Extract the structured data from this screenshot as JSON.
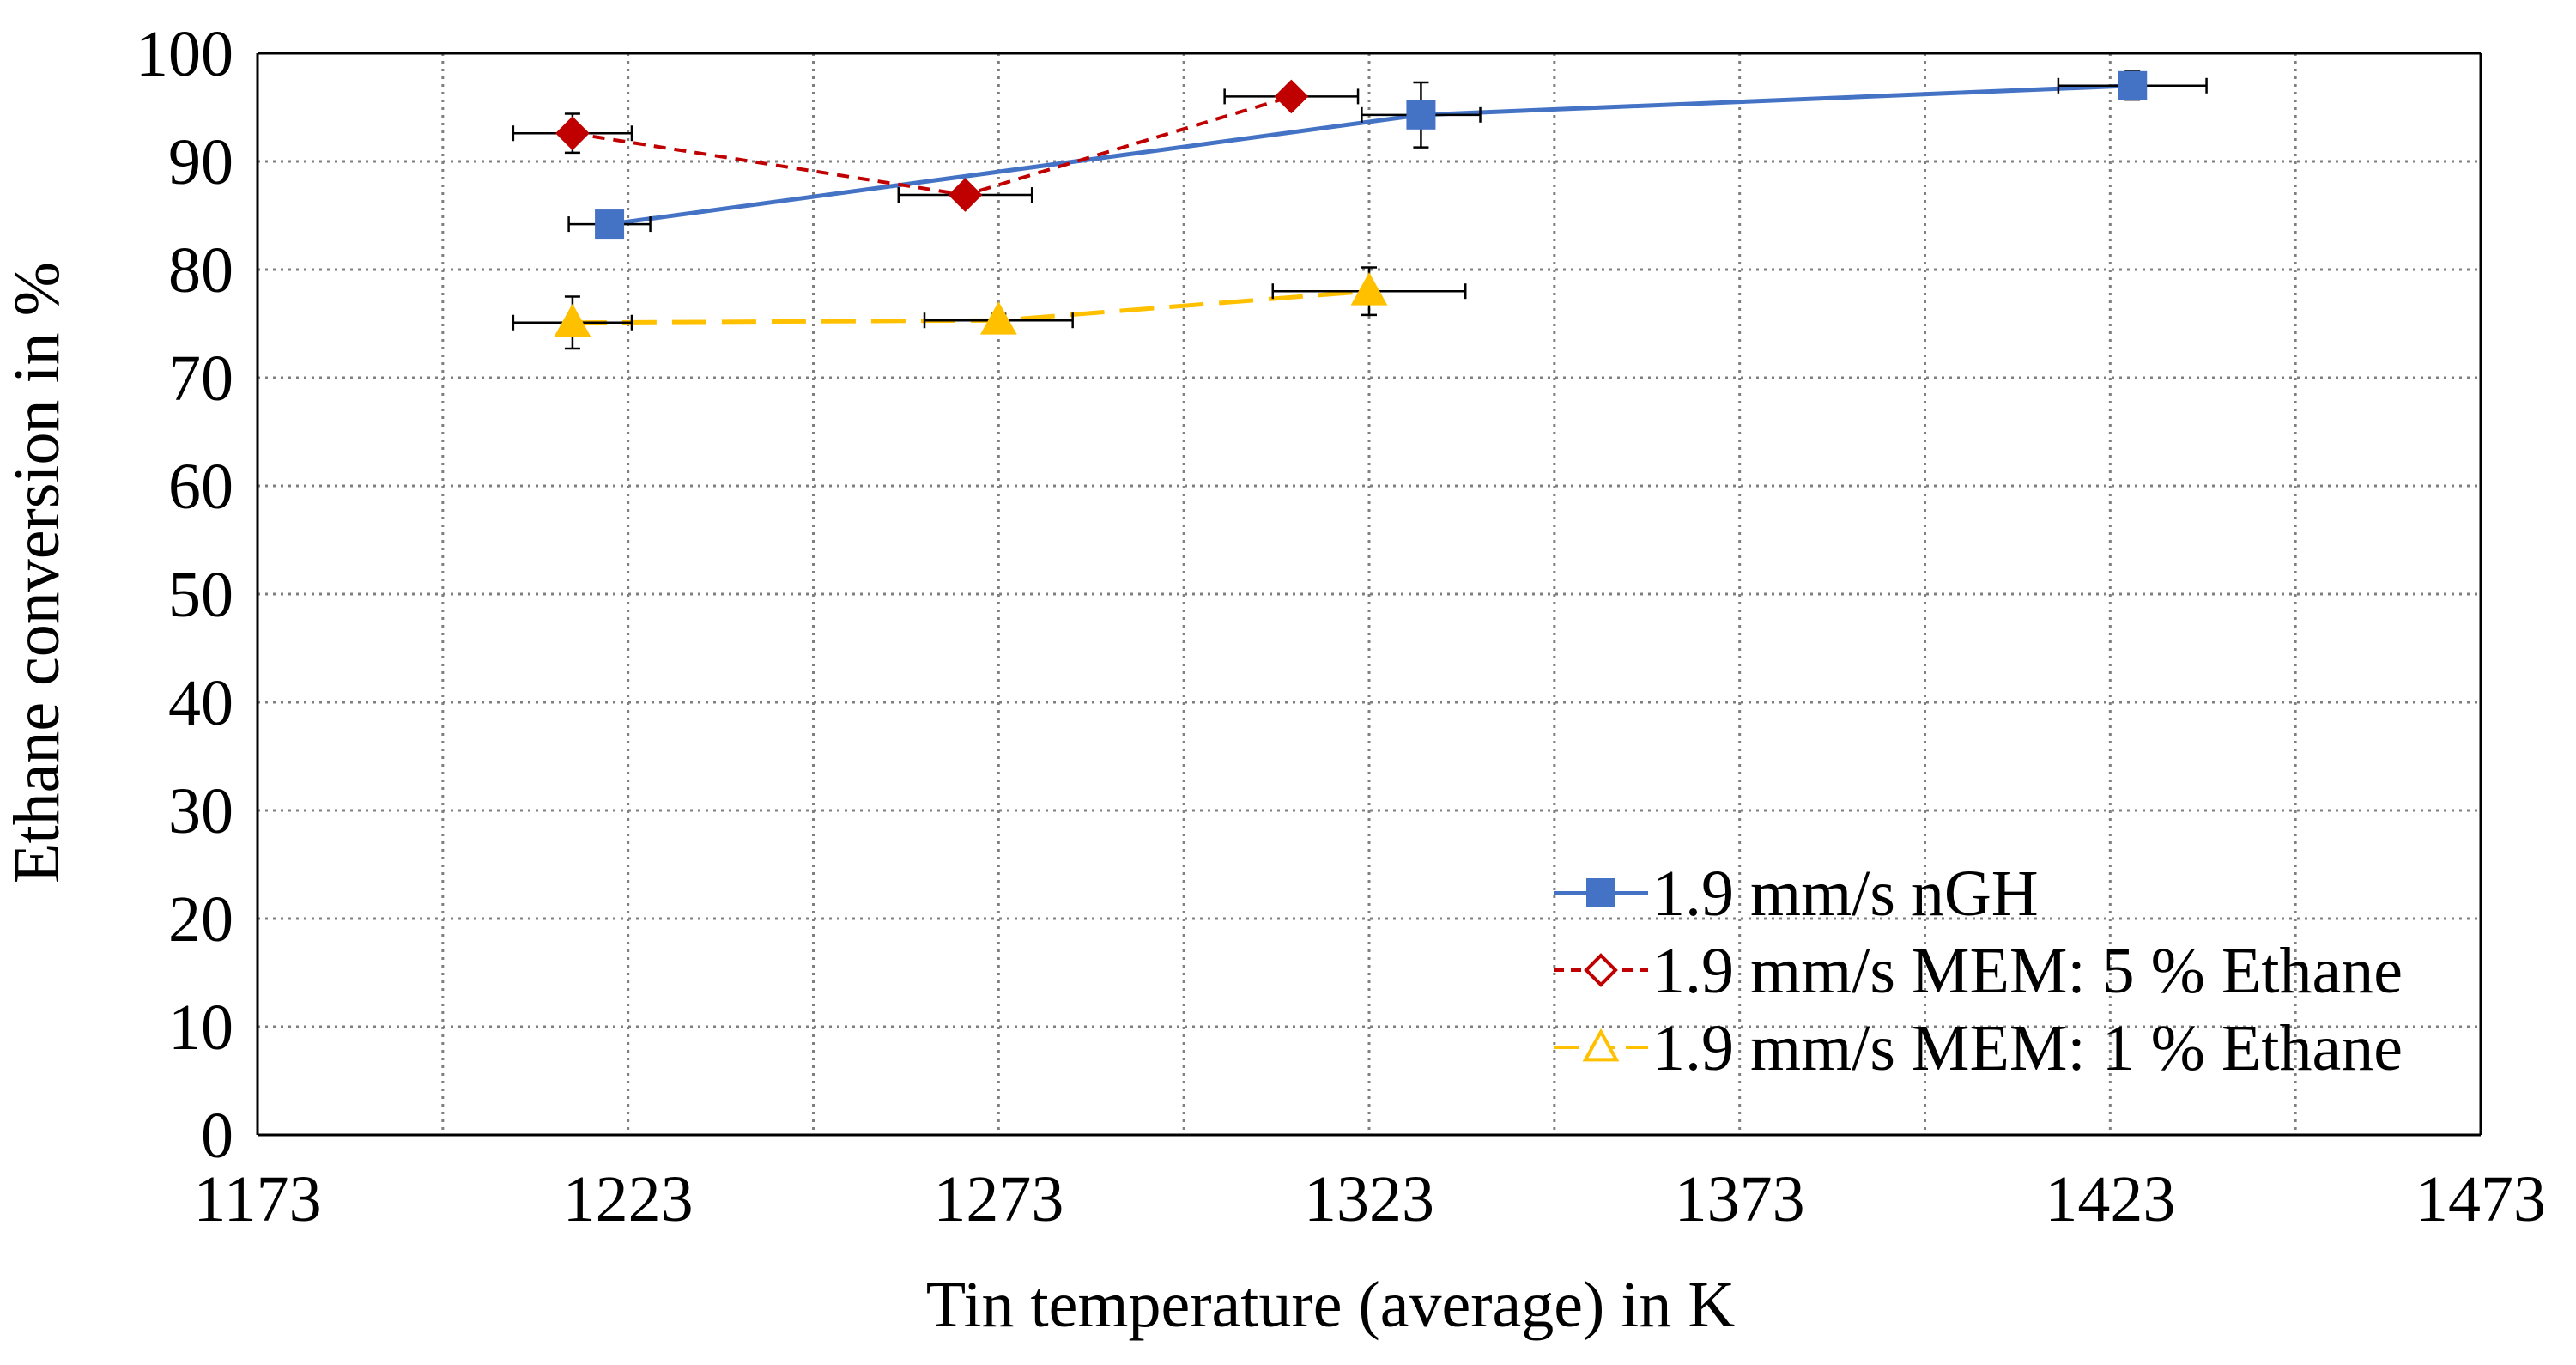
{
  "chart_data": {
    "type": "line",
    "xlabel": "Tin temperature (average) in K",
    "ylabel": "Ethane conversion in %",
    "xlim": [
      1173,
      1473
    ],
    "ylim": [
      0,
      100
    ],
    "x_ticks": [
      "1173",
      "1223",
      "1273",
      "1323",
      "1373",
      "1423",
      "1473"
    ],
    "y_ticks": [
      "0",
      "10",
      "20",
      "30",
      "40",
      "50",
      "60",
      "70",
      "80",
      "90",
      "100"
    ],
    "grid": true,
    "legend_position": "bottom-right",
    "series": [
      {
        "name": "1.9 mm/s nGH",
        "color": "#4472C4",
        "line_style": "solid",
        "marker": "square",
        "points": [
          {
            "x": 1220.5,
            "y": 84.2,
            "x_err": 5.5,
            "y_err": 0.8
          },
          {
            "x": 1330,
            "y": 94.3,
            "x_err": 8,
            "y_err": 3
          },
          {
            "x": 1426,
            "y": 97.0,
            "x_err": 10,
            "y_err": 1.3
          }
        ]
      },
      {
        "name": "1.9 mm/s MEM: 5 % Ethane",
        "color": "#C00000",
        "line_style": "dashed",
        "marker": "diamond",
        "points": [
          {
            "x": 1215.5,
            "y": 92.6,
            "x_err": 8,
            "y_err": 1.8
          },
          {
            "x": 1268.5,
            "y": 86.9,
            "x_err": 9,
            "y_err": 0.6
          },
          {
            "x": 1312.5,
            "y": 96.0,
            "x_err": 9,
            "y_err": 0.6
          }
        ]
      },
      {
        "name": "1.9 mm/s MEM: 1 % Ethane",
        "color": "#FFC000",
        "line_style": "long-dashed",
        "marker": "triangle",
        "points": [
          {
            "x": 1215.5,
            "y": 75.1,
            "x_err": 8,
            "y_err": 2.4
          },
          {
            "x": 1273,
            "y": 75.3,
            "x_err": 10,
            "y_err": 0.6
          },
          {
            "x": 1323,
            "y": 78.0,
            "x_err": 13,
            "y_err": 2.2
          }
        ]
      }
    ]
  }
}
